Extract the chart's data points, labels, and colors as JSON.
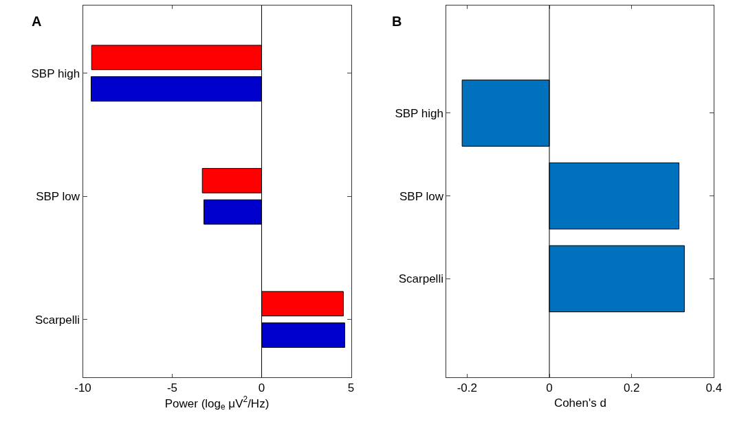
{
  "chart_data": [
    {
      "type": "bar",
      "title": "A",
      "orientation": "horizontal",
      "categories": [
        "SBP high",
        "SBP low",
        "Scarpelli"
      ],
      "series": [
        {
          "color": "#ff0000",
          "values": [
            -9.51,
            -3.32,
            4.57
          ]
        },
        {
          "color": "#0000cc",
          "values": [
            -9.54,
            -3.23,
            4.65
          ]
        }
      ],
      "xlim": [
        -10,
        5
      ],
      "xticks": [
        -10,
        -5,
        0,
        5
      ],
      "xlabel": "Power (log$_{e}$ μV$^{2}$/Hz)",
      "ref_lines": [
        {
          "axis": "x",
          "value": 0
        }
      ]
    },
    {
      "type": "bar",
      "title": "B",
      "orientation": "horizontal",
      "categories": [
        "SBP high",
        "SBP low",
        "Scarpelli"
      ],
      "series": [
        {
          "color": "#0072bd",
          "values": [
            -0.212,
            0.315,
            0.328
          ]
        }
      ],
      "xlim": [
        -0.25,
        0.4
      ],
      "xticks": [
        -0.2,
        0,
        0.2,
        0.4
      ],
      "xlabel": "Cohen's d",
      "ref_lines": [
        {
          "axis": "x",
          "value": 0
        }
      ]
    }
  ]
}
